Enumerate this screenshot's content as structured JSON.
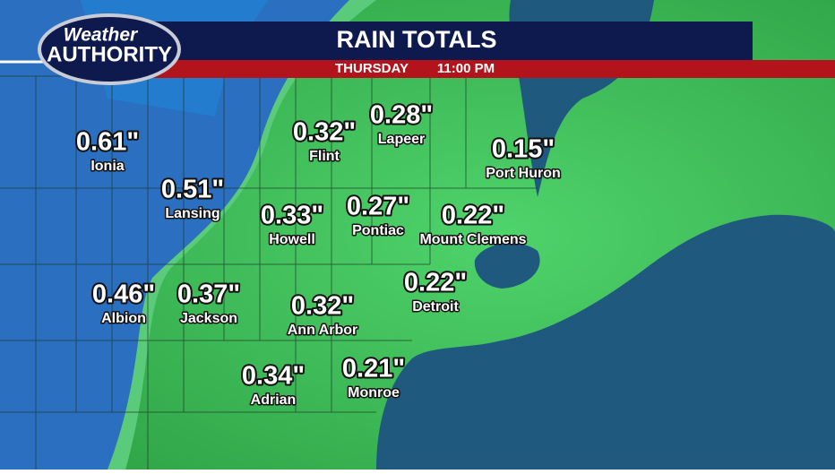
{
  "header": {
    "logo_top": "Weather",
    "logo_bottom": "AUTHORITY",
    "title": "RAIN TOTALS",
    "day": "THURSDAY",
    "time": "11:00 PM"
  },
  "locations": [
    {
      "value": "0.61\"",
      "name": "Ionia"
    },
    {
      "value": "0.51\"",
      "name": "Lansing"
    },
    {
      "value": "0.32\"",
      "name": "Flint"
    },
    {
      "value": "0.28\"",
      "name": "Lapeer"
    },
    {
      "value": "0.15\"",
      "name": "Port Huron"
    },
    {
      "value": "0.33\"",
      "name": "Howell"
    },
    {
      "value": "0.27\"",
      "name": "Pontiac"
    },
    {
      "value": "0.22\"",
      "name": "Mount Clemens"
    },
    {
      "value": "0.46\"",
      "name": "Albion"
    },
    {
      "value": "0.37\"",
      "name": "Jackson"
    },
    {
      "value": "0.32\"",
      "name": "Ann Arbor"
    },
    {
      "value": "0.22\"",
      "name": "Detroit"
    },
    {
      "value": "0.34\"",
      "name": "Adrian"
    },
    {
      "value": "0.21\"",
      "name": "Monroe"
    }
  ]
}
